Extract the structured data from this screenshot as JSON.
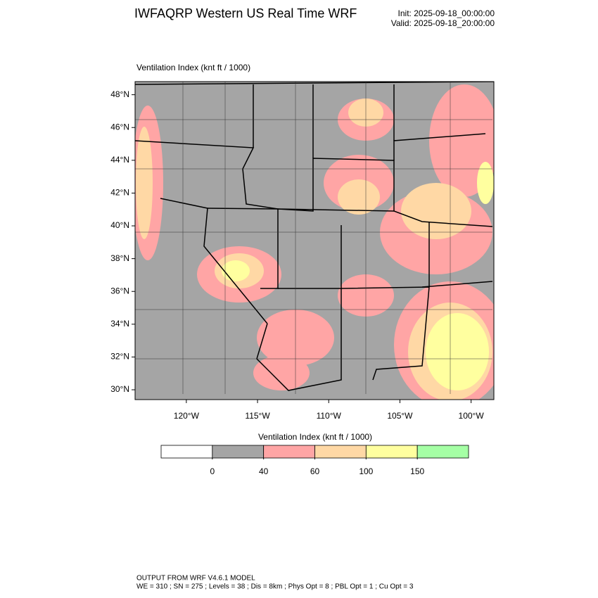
{
  "header": {
    "title": "IWFAQRP Western US Real Time WRF",
    "init": "Init: 2025-09-18_00:00:00",
    "valid": "Valid: 2025-09-18_20:00:00"
  },
  "map": {
    "field_title": "Ventilation Index   (knt ft / 1000)",
    "xlim": [
      -123.6,
      -98.4
    ],
    "ylim": [
      29.4,
      48.8
    ],
    "xticks": [
      {
        "value": -120,
        "label": "120°W"
      },
      {
        "value": -115,
        "label": "115°W"
      },
      {
        "value": -110,
        "label": "110°W"
      },
      {
        "value": -105,
        "label": "105°W"
      },
      {
        "value": -100,
        "label": "100°W"
      }
    ],
    "yticks": [
      {
        "value": 48,
        "label": "48°N"
      },
      {
        "value": 46,
        "label": "46°N"
      },
      {
        "value": 44,
        "label": "44°N"
      },
      {
        "value": 42,
        "label": "42°N"
      },
      {
        "value": 40,
        "label": "40°N"
      },
      {
        "value": 38,
        "label": "38°N"
      },
      {
        "value": 36,
        "label": "36°N"
      },
      {
        "value": 34,
        "label": "34°N"
      },
      {
        "value": 32,
        "label": "32°N"
      },
      {
        "value": 30,
        "label": "30°N"
      }
    ]
  },
  "colorbar": {
    "title": "Ventilation Index   (knt ft / 1000)",
    "levels": [
      0,
      40,
      60,
      100,
      150
    ],
    "colors": [
      "#ffffff",
      "#a5a5a5",
      "#ffa5a5",
      "#ffd8a5",
      "#ffff9f",
      "#a5ffa5"
    ]
  },
  "footer": {
    "line1": "OUTPUT FROM WRF V4.6.1 MODEL",
    "line2": "WE = 310 ; SN = 275 ; Levels = 38 ; Dis = 8km ; Phys Opt = 8 ; PBL Opt = 1 ; Cu Opt = 3"
  }
}
